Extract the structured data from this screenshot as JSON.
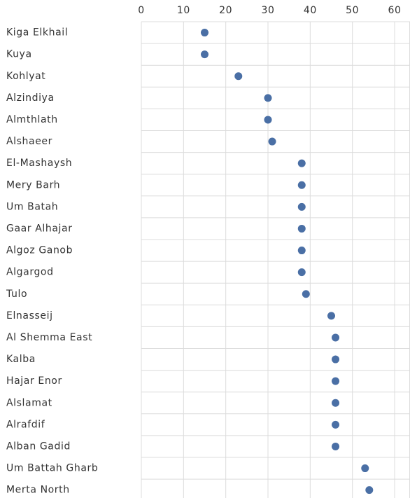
{
  "chart_data": {
    "type": "dot",
    "categories": [
      "Kiga Elkhail",
      "Kuya",
      "Kohlyat",
      "Alzindiya",
      "Almthlath",
      "Alshaeer",
      "El-Mashaysh",
      "Mery Barh",
      "Um Batah",
      "Gaar Alhajar",
      "Algoz Ganob",
      "Algargod",
      "Tulo",
      "Elnasseij",
      "Al Shemma East",
      "Kalba",
      "Hajar Enor",
      "Alslamat",
      "Alrafdif",
      "Alban Gadid",
      "Um Battah Gharb",
      "Merta North"
    ],
    "values": [
      15,
      15,
      23,
      30,
      30,
      31,
      38,
      38,
      38,
      38,
      38,
      38,
      39,
      45,
      46,
      46,
      46,
      46,
      46,
      46,
      53,
      54
    ],
    "color": "#4a6fa5",
    "xlim": [
      0,
      60
    ],
    "xticks": [
      0,
      10,
      20,
      30,
      40,
      50,
      60
    ],
    "grid": true
  }
}
